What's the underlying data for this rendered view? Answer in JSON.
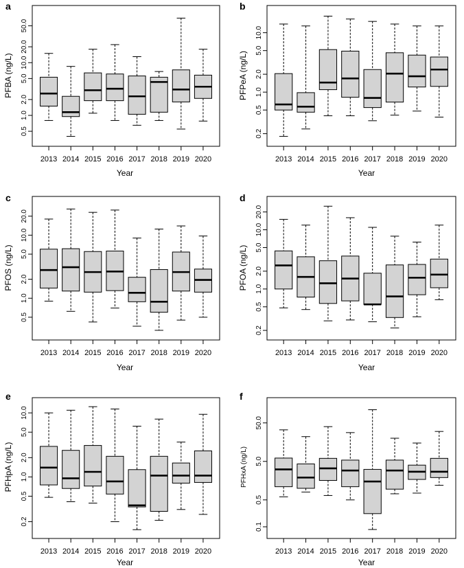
{
  "chart_data": [
    {
      "panel": "a",
      "type": "box",
      "ylabel": "PFBA (ng/L)",
      "xlabel": "Year",
      "yscale": "log",
      "ylim": [
        0.35,
        90
      ],
      "yticks": [
        0.5,
        1.0,
        2.0,
        5.0,
        10.0,
        20.0,
        50.0
      ],
      "categories": [
        "2013",
        "2014",
        "2015",
        "2016",
        "2017",
        "2018",
        "2019",
        "2020"
      ],
      "boxes": [
        {
          "min": 0.8,
          "q1": 1.5,
          "median": 2.6,
          "q3": 5.3,
          "max": 15
        },
        {
          "min": 0.4,
          "q1": 0.95,
          "median": 1.15,
          "q3": 2.3,
          "max": 8.5
        },
        {
          "min": 1.1,
          "q1": 1.9,
          "median": 3.0,
          "q3": 6.4,
          "max": 18
        },
        {
          "min": 0.8,
          "q1": 1.9,
          "median": 3.2,
          "q3": 6.1,
          "max": 22
        },
        {
          "min": 0.65,
          "q1": 1.05,
          "median": 2.3,
          "q3": 5.6,
          "max": 13
        },
        {
          "min": 0.8,
          "q1": 1.15,
          "median": 4.3,
          "q3": 5.3,
          "max": 6.8
        },
        {
          "min": 0.55,
          "q1": 1.8,
          "median": 3.1,
          "q3": 7.3,
          "max": 70
        },
        {
          "min": 0.78,
          "q1": 2.1,
          "median": 3.5,
          "q3": 5.8,
          "max": 18
        }
      ]
    },
    {
      "panel": "b",
      "type": "box",
      "ylabel": "PFPeA (ng/L)",
      "xlabel": "Year",
      "yscale": "log",
      "ylim": [
        0.16,
        22
      ],
      "yticks": [
        0.2,
        0.5,
        1.0,
        2.0,
        5.0,
        10.0
      ],
      "categories": [
        "2013",
        "2014",
        "2015",
        "2016",
        "2017",
        "2018",
        "2019",
        "2020"
      ],
      "boxes": [
        {
          "min": 0.18,
          "q1": 0.5,
          "median": 0.62,
          "q3": 2.05,
          "max": 14
        },
        {
          "min": 0.24,
          "q1": 0.46,
          "median": 0.57,
          "q3": 0.98,
          "max": 13
        },
        {
          "min": 0.4,
          "q1": 1.1,
          "median": 1.45,
          "q3": 5.2,
          "max": 19
        },
        {
          "min": 0.4,
          "q1": 0.82,
          "median": 1.7,
          "q3": 4.9,
          "max": 17
        },
        {
          "min": 0.33,
          "q1": 0.55,
          "median": 0.8,
          "q3": 2.4,
          "max": 15.5
        },
        {
          "min": 0.41,
          "q1": 0.68,
          "median": 2.05,
          "q3": 4.6,
          "max": 14
        },
        {
          "min": 0.48,
          "q1": 1.22,
          "median": 1.85,
          "q3": 4.2,
          "max": 13
        },
        {
          "min": 0.38,
          "q1": 1.25,
          "median": 2.4,
          "q3": 3.9,
          "max": 13
        }
      ]
    },
    {
      "panel": "c",
      "type": "box",
      "ylabel": "PFOS (ng/L)",
      "xlabel": "Year",
      "yscale": "log",
      "ylim": [
        0.28,
        32
      ],
      "yticks": [
        0.5,
        1.0,
        2.0,
        5.0,
        10.0,
        20.0
      ],
      "categories": [
        "2013",
        "2014",
        "2015",
        "2016",
        "2017",
        "2018",
        "2019",
        "2020"
      ],
      "boxes": [
        {
          "min": 0.9,
          "q1": 1.45,
          "median": 2.8,
          "q3": 6.0,
          "max": 18
        },
        {
          "min": 0.62,
          "q1": 1.3,
          "median": 3.1,
          "q3": 6.1,
          "max": 26
        },
        {
          "min": 0.42,
          "q1": 1.25,
          "median": 2.6,
          "q3": 5.5,
          "max": 23
        },
        {
          "min": 0.7,
          "q1": 1.32,
          "median": 2.65,
          "q3": 5.6,
          "max": 25
        },
        {
          "min": 0.36,
          "q1": 0.88,
          "median": 1.22,
          "q3": 2.15,
          "max": 9.0
        },
        {
          "min": 0.31,
          "q1": 0.6,
          "median": 0.88,
          "q3": 2.85,
          "max": 12.5
        },
        {
          "min": 0.45,
          "q1": 1.3,
          "median": 2.6,
          "q3": 5.4,
          "max": 14
        },
        {
          "min": 0.5,
          "q1": 1.25,
          "median": 1.95,
          "q3": 2.9,
          "max": 9.7
        }
      ]
    },
    {
      "panel": "d",
      "type": "box",
      "ylabel": "PFOA (ng/L)",
      "xlabel": "Year",
      "yscale": "log",
      "ylim": [
        0.18,
        28
      ],
      "yticks": [
        0.2,
        0.5,
        1.0,
        2.0,
        5.0,
        10.0,
        20.0
      ],
      "categories": [
        "2013",
        "2014",
        "2015",
        "2016",
        "2017",
        "2018",
        "2019",
        "2020"
      ],
      "boxes": [
        {
          "min": 0.48,
          "q1": 1.0,
          "median": 2.5,
          "q3": 4.4,
          "max": 15
        },
        {
          "min": 0.45,
          "q1": 0.73,
          "median": 1.6,
          "q3": 3.5,
          "max": 12
        },
        {
          "min": 0.29,
          "q1": 0.57,
          "median": 1.25,
          "q3": 3.0,
          "max": 25
        },
        {
          "min": 0.3,
          "q1": 0.63,
          "median": 1.5,
          "q3": 3.6,
          "max": 16
        },
        {
          "min": 0.28,
          "q1": 0.55,
          "median": 0.55,
          "q3": 1.85,
          "max": 11
        },
        {
          "min": 0.22,
          "q1": 0.33,
          "median": 0.75,
          "q3": 2.55,
          "max": 7.8
        },
        {
          "min": 0.34,
          "q1": 0.8,
          "median": 1.55,
          "q3": 2.6,
          "max": 6.2
        },
        {
          "min": 0.66,
          "q1": 1.05,
          "median": 1.75,
          "q3": 3.2,
          "max": 12
        }
      ]
    },
    {
      "panel": "e",
      "type": "box",
      "ylabel": "PFHpA (ng/L)",
      "xlabel": "Year",
      "yscale": "log",
      "ylim": [
        0.14,
        13.5
      ],
      "yticks": [
        0.2,
        0.5,
        1.0,
        2.0,
        5.0,
        10.0
      ],
      "categories": [
        "2013",
        "2014",
        "2015",
        "2016",
        "2017",
        "2018",
        "2019",
        "2020"
      ],
      "boxes": [
        {
          "min": 0.48,
          "q1": 0.75,
          "median": 1.4,
          "q3": 3.0,
          "max": 10
        },
        {
          "min": 0.41,
          "q1": 0.66,
          "median": 0.95,
          "q3": 2.6,
          "max": 11
        },
        {
          "min": 0.39,
          "q1": 0.72,
          "median": 1.2,
          "q3": 3.1,
          "max": 12.5
        },
        {
          "min": 0.2,
          "q1": 0.54,
          "median": 0.85,
          "q3": 2.1,
          "max": 11.5
        },
        {
          "min": 0.15,
          "q1": 0.34,
          "median": 0.36,
          "q3": 1.3,
          "max": 6.2
        },
        {
          "min": 0.21,
          "q1": 0.29,
          "median": 1.05,
          "q3": 2.1,
          "max": 8.0
        },
        {
          "min": 0.31,
          "q1": 0.8,
          "median": 1.05,
          "q3": 1.65,
          "max": 3.5
        },
        {
          "min": 0.26,
          "q1": 0.82,
          "median": 1.05,
          "q3": 2.55,
          "max": 9.5
        }
      ]
    },
    {
      "panel": "f",
      "type": "box",
      "ylabel": "PFHxA (ng/L)",
      "xlabel": "Year",
      "yscale": "log",
      "ylim": [
        0.075,
        150
      ],
      "yticks": [
        0.1,
        0.5,
        5.0,
        50.0
      ],
      "categories": [
        "2013",
        "2014",
        "2015",
        "2016",
        "2017",
        "2018",
        "2019",
        "2020"
      ],
      "boxes": [
        {
          "min": 0.6,
          "q1": 1.1,
          "median": 3.1,
          "q3": 6.1,
          "max": 33
        },
        {
          "min": 0.8,
          "q1": 1.0,
          "median": 1.9,
          "q3": 4.3,
          "max": 22
        },
        {
          "min": 0.65,
          "q1": 1.6,
          "median": 3.3,
          "q3": 6.0,
          "max": 40
        },
        {
          "min": 0.5,
          "q1": 1.1,
          "median": 2.9,
          "q3": 5.4,
          "max": 28
        },
        {
          "min": 0.085,
          "q1": 0.22,
          "median": 1.5,
          "q3": 3.1,
          "max": 110
        },
        {
          "min": 0.72,
          "q1": 0.95,
          "median": 2.9,
          "q3": 5.4,
          "max": 20
        },
        {
          "min": 0.75,
          "q1": 1.7,
          "median": 2.7,
          "q3": 4.0,
          "max": 15
        },
        {
          "min": 1.2,
          "q1": 1.9,
          "median": 2.7,
          "q3": 6.0,
          "max": 30
        }
      ]
    }
  ],
  "style": {
    "box_fill": "#d3d3d3",
    "stroke": "#000000",
    "axis_color": "#000000"
  }
}
